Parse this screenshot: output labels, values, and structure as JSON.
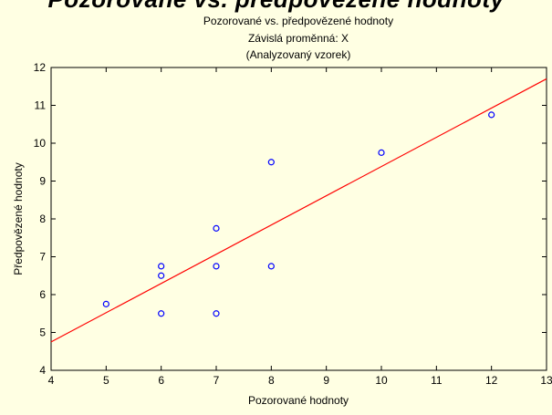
{
  "cut_title": "Pozorované vs. předpovězené hodnoty",
  "chart_data": {
    "type": "scatter",
    "title": "Pozorované vs. předpovězené hodnoty",
    "subtitle_lines": [
      "Závislá proměnná: X",
      "(Analyzovaný vzorek)"
    ],
    "xlabel": "Pozorované hodnoty",
    "ylabel": "Předpovězené hodnoty",
    "xlim": [
      4,
      13
    ],
    "ylim": [
      4,
      12
    ],
    "x_ticks": [
      4,
      5,
      6,
      7,
      8,
      9,
      10,
      11,
      12,
      13
    ],
    "y_ticks": [
      4,
      5,
      6,
      7,
      8,
      9,
      10,
      11,
      12
    ],
    "grid": false,
    "background_color": "#ffffe3",
    "point_color": "#0000ff",
    "line_color": "#ff0000",
    "points": [
      {
        "x": 5,
        "y": 5.75
      },
      {
        "x": 6,
        "y": 6.75
      },
      {
        "x": 6,
        "y": 6.5
      },
      {
        "x": 6,
        "y": 5.5
      },
      {
        "x": 7,
        "y": 7.75
      },
      {
        "x": 7,
        "y": 6.75
      },
      {
        "x": 7,
        "y": 5.5
      },
      {
        "x": 8,
        "y": 9.5
      },
      {
        "x": 8,
        "y": 6.75
      },
      {
        "x": 10,
        "y": 9.75
      },
      {
        "x": 12,
        "y": 10.75
      }
    ],
    "fit_line": {
      "x": [
        4,
        13
      ],
      "y": [
        4.75,
        11.7
      ]
    }
  }
}
